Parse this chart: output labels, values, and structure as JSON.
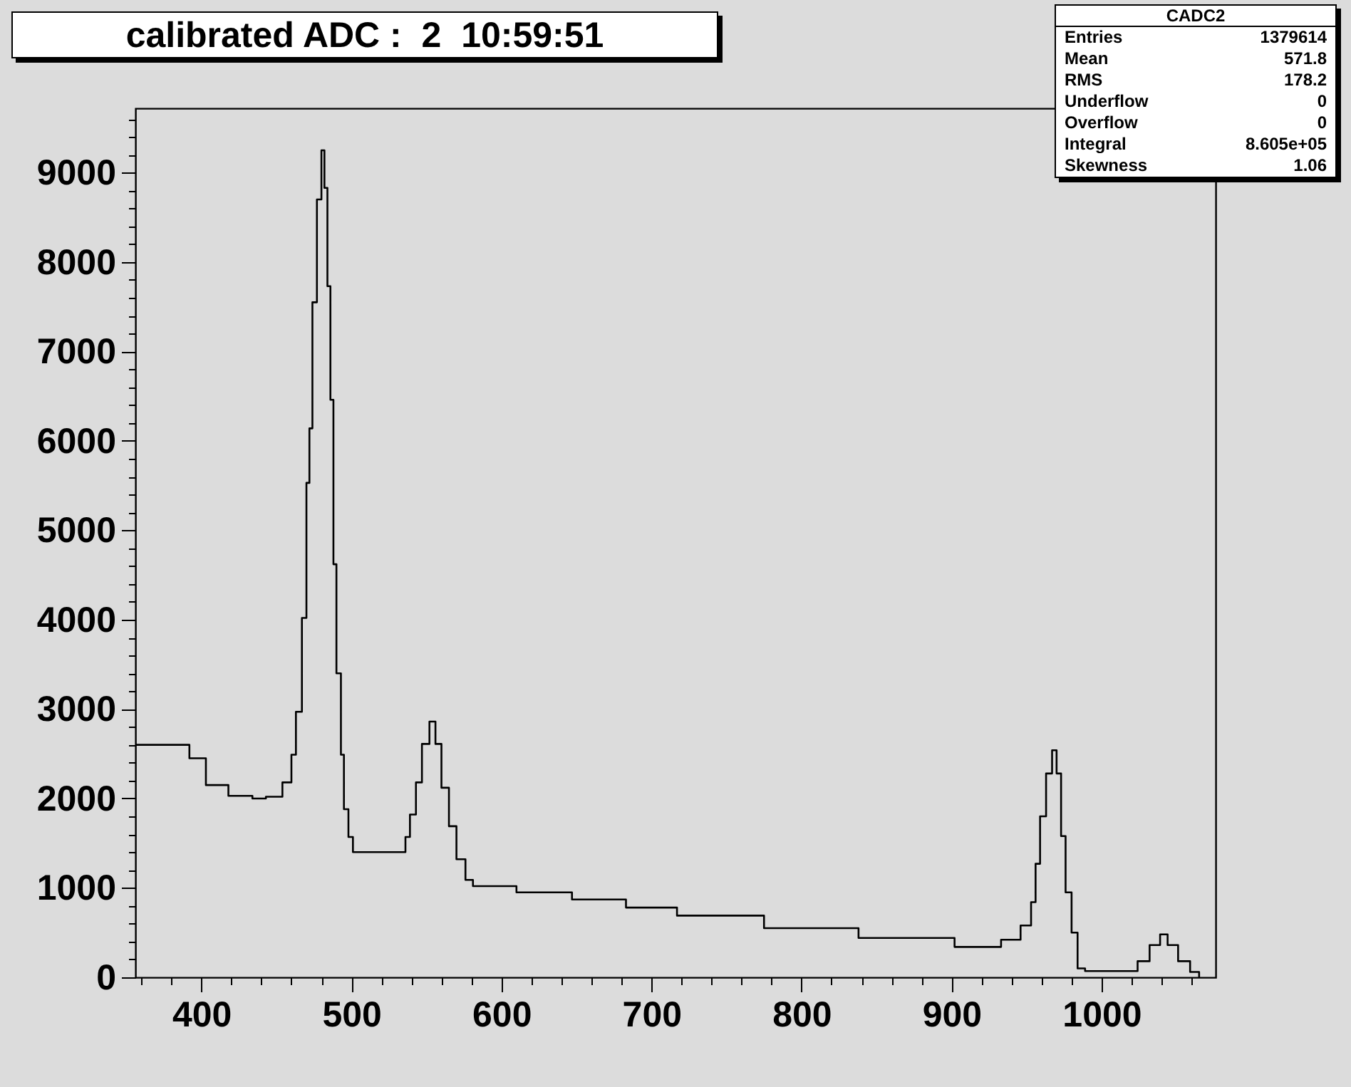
{
  "chart_data": {
    "type": "step",
    "title": "calibrated ADC :  2  10:59:51",
    "annotations": [
      "CADC2",
      "Entries",
      "1379614",
      "Mean",
      "571.8",
      "RMS",
      "178.2",
      "Underflow",
      "0",
      "Overflow",
      "0",
      "Integral",
      "8.605e+05",
      "Skewness",
      "1.06"
    ],
    "x": [
      356,
      392,
      403,
      418,
      434,
      443,
      454,
      460,
      463,
      467,
      470,
      472,
      474,
      477,
      480,
      482,
      484,
      486,
      488,
      490,
      493,
      495,
      498,
      501,
      531,
      536,
      539,
      543,
      547,
      552,
      556,
      560,
      565,
      570,
      576,
      581,
      610,
      647,
      683,
      717,
      775,
      838,
      902,
      933,
      946,
      953,
      956,
      959,
      963,
      967,
      970,
      973,
      976,
      980,
      984,
      989,
      1016,
      1024,
      1032,
      1039,
      1044,
      1051,
      1059,
      1065
    ],
    "series": [
      {
        "color": "#000000",
        "values": [
          2600,
          2450,
          2150,
          2030,
          2000,
          2020,
          2180,
          2490,
          2970,
          4020,
          5530,
          6140,
          7550,
          8700,
          9250,
          8830,
          7730,
          6460,
          4620,
          3400,
          2490,
          1880,
          1570,
          1400,
          1400,
          1570,
          1820,
          2180,
          2610,
          2860,
          2610,
          2120,
          1690,
          1320,
          1090,
          1020,
          950,
          870,
          780,
          690,
          550,
          440,
          340,
          420,
          580,
          840,
          1270,
          1800,
          2280,
          2540,
          2280,
          1580,
          950,
          500,
          100,
          70,
          70,
          180,
          360,
          480,
          360,
          180,
          60,
          0
        ]
      }
    ],
    "xlim": [
      356,
      1076
    ],
    "ylim": [
      0,
      9720
    ],
    "xticks": [
      {
        "value": 360,
        "label": null
      },
      {
        "value": 380,
        "label": null
      },
      400,
      {
        "value": 420,
        "label": null
      },
      {
        "value": 440,
        "label": null
      },
      {
        "value": 460,
        "label": null
      },
      {
        "value": 480,
        "label": null
      },
      500,
      {
        "value": 520,
        "label": null
      },
      {
        "value": 540,
        "label": null
      },
      {
        "value": 560,
        "label": null
      },
      {
        "value": 580,
        "label": null
      },
      600,
      {
        "value": 620,
        "label": null
      },
      {
        "value": 640,
        "label": null
      },
      {
        "value": 660,
        "label": null
      },
      {
        "value": 680,
        "label": null
      },
      700,
      {
        "value": 720,
        "label": null
      },
      {
        "value": 740,
        "label": null
      },
      {
        "value": 760,
        "label": null
      },
      {
        "value": 780,
        "label": null
      },
      800,
      {
        "value": 820,
        "label": null
      },
      {
        "value": 840,
        "label": null
      },
      {
        "value": 860,
        "label": null
      },
      {
        "value": 880,
        "label": null
      },
      900,
      {
        "value": 920,
        "label": null
      },
      {
        "value": 940,
        "label": null
      },
      {
        "value": 960,
        "label": null
      },
      {
        "value": 980,
        "label": null
      },
      1000,
      {
        "value": 1020,
        "label": null
      },
      {
        "value": 1040,
        "label": null
      },
      {
        "value": 1060,
        "label": null
      }
    ],
    "yticks": [
      0,
      {
        "value": 200,
        "label": null
      },
      {
        "value": 400,
        "label": null
      },
      {
        "value": 600,
        "label": null
      },
      {
        "value": 800,
        "label": null
      },
      1000,
      {
        "value": 1200,
        "label": null
      },
      {
        "value": 1400,
        "label": null
      },
      {
        "value": 1600,
        "label": null
      },
      {
        "value": 1800,
        "label": null
      },
      2000,
      {
        "value": 2200,
        "label": null
      },
      {
        "value": 2400,
        "label": null
      },
      {
        "value": 2600,
        "label": null
      },
      {
        "value": 2800,
        "label": null
      },
      3000,
      {
        "value": 3200,
        "label": null
      },
      {
        "value": 3400,
        "label": null
      },
      {
        "value": 3600,
        "label": null
      },
      {
        "value": 3800,
        "label": null
      },
      4000,
      {
        "value": 4200,
        "label": null
      },
      {
        "value": 4400,
        "label": null
      },
      {
        "value": 4600,
        "label": null
      },
      {
        "value": 4800,
        "label": null
      },
      5000,
      {
        "value": 5200,
        "label": null
      },
      {
        "value": 5400,
        "label": null
      },
      {
        "value": 5600,
        "label": null
      },
      {
        "value": 5800,
        "label": null
      },
      6000,
      {
        "value": 6200,
        "label": null
      },
      {
        "value": 6400,
        "label": null
      },
      {
        "value": 6600,
        "label": null
      },
      {
        "value": 6800,
        "label": null
      },
      7000,
      {
        "value": 7200,
        "label": null
      },
      {
        "value": 7400,
        "label": null
      },
      {
        "value": 7600,
        "label": null
      },
      {
        "value": 7800,
        "label": null
      },
      8000,
      {
        "value": 8200,
        "label": null
      },
      {
        "value": 8400,
        "label": null
      },
      {
        "value": 8600,
        "label": null
      },
      {
        "value": 8800,
        "label": null
      },
      9000,
      {
        "value": 9200,
        "label": null
      },
      {
        "value": 9400,
        "label": null
      },
      {
        "value": 9600,
        "label": null
      }
    ],
    "line_style": "solid"
  }
}
